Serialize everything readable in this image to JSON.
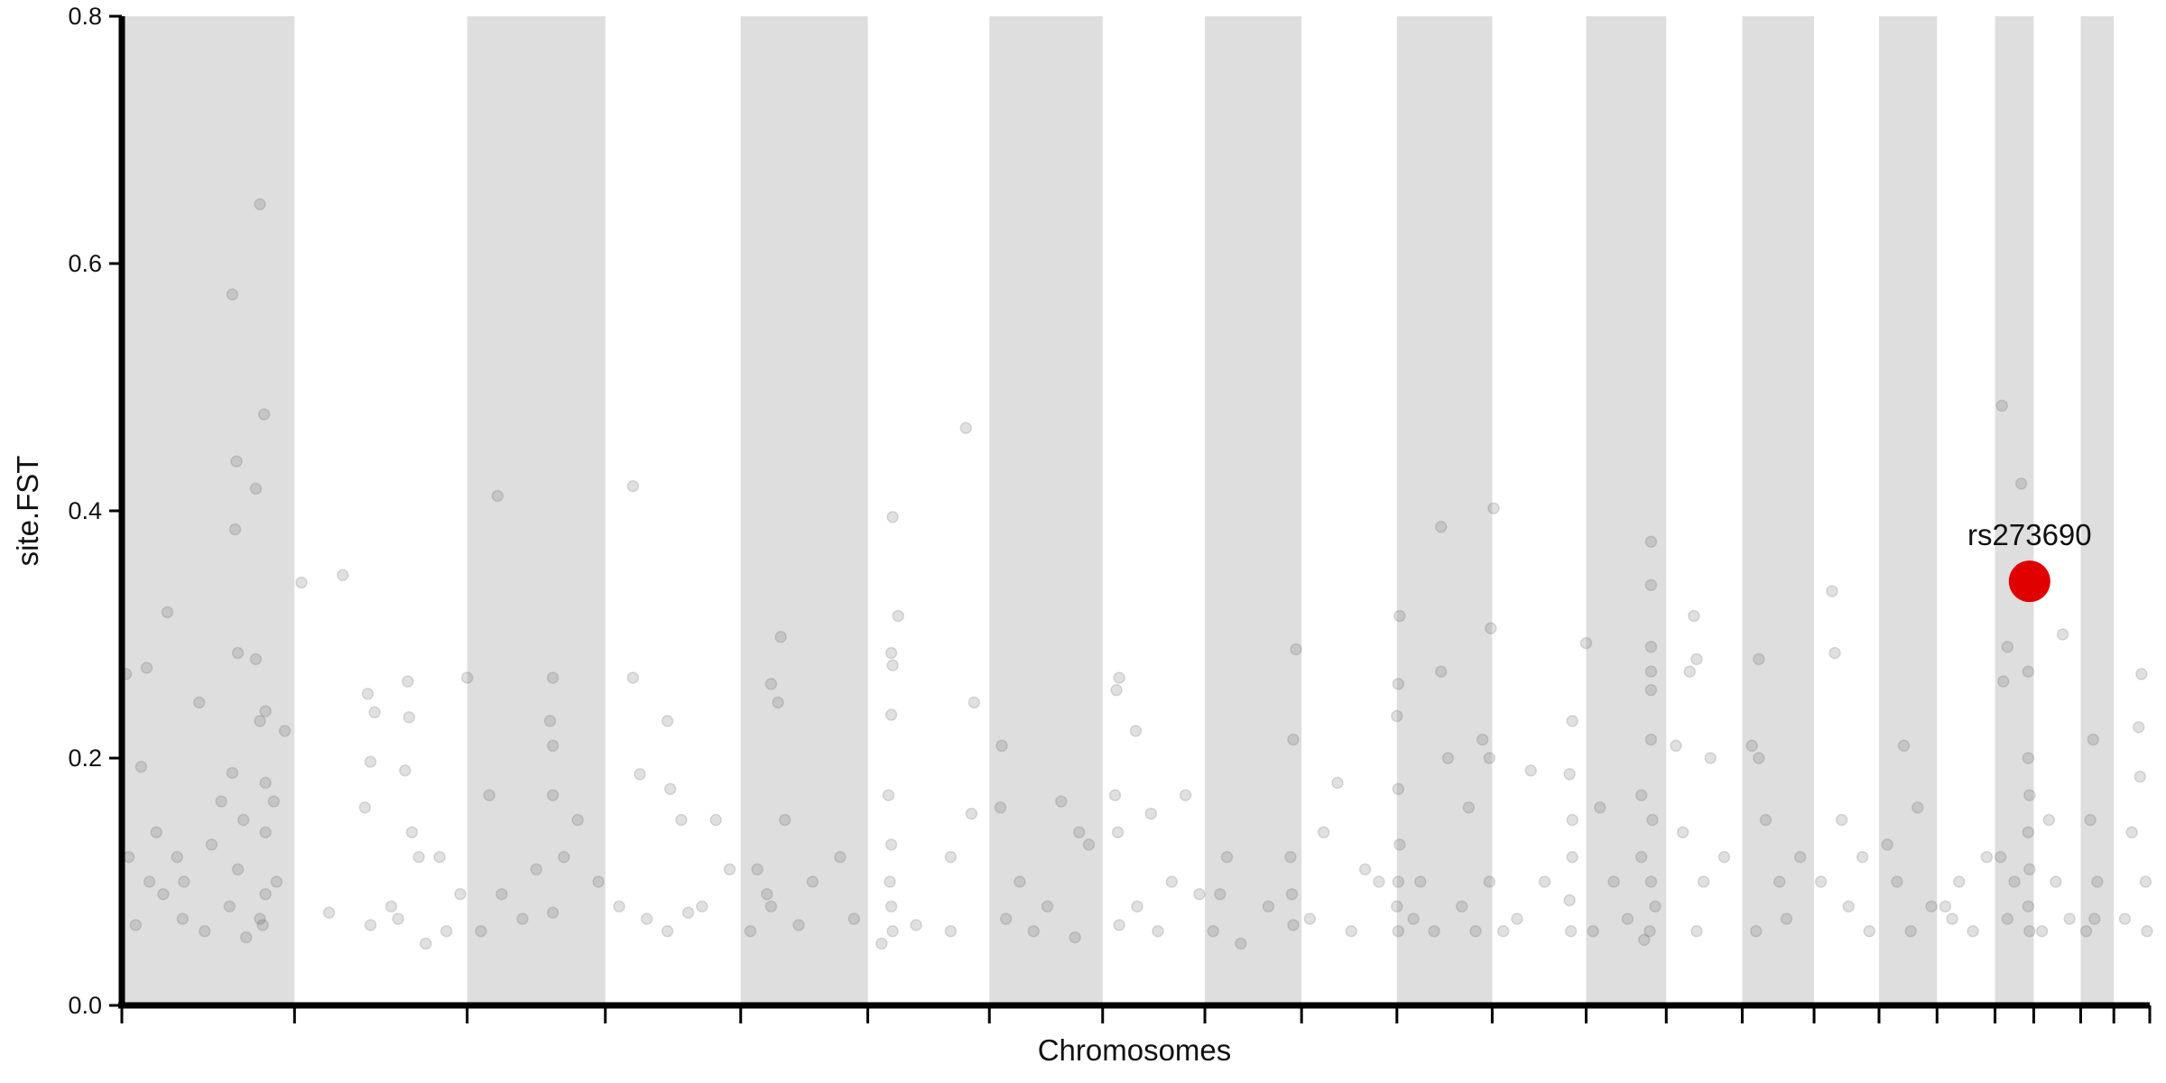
{
  "chart_data": {
    "type": "scatter",
    "x_label": "Chromosomes",
    "y_label": "site.FST",
    "xlim": [
      0,
      1468
    ],
    "ylim": [
      0,
      0.8
    ],
    "yticks": [
      {
        "value": 0,
        "label": "0.0"
      },
      0.2,
      0.4,
      0.6,
      0.8
    ],
    "chromosome_boundaries": [
      0,
      125,
      250,
      350,
      448,
      540,
      628,
      710,
      784,
      854,
      923,
      992,
      1060,
      1118,
      1173,
      1225,
      1272,
      1314,
      1356,
      1384,
      1418,
      1442,
      1468
    ],
    "band_color": "#dedede",
    "color": "#555555",
    "opacity": 0.18,
    "x": [
      80,
      100,
      83,
      97,
      82,
      103,
      84,
      33,
      18,
      3,
      14,
      56,
      97,
      104,
      118,
      100,
      80,
      72,
      104,
      5,
      20,
      30,
      44,
      60,
      84,
      100,
      102,
      90,
      10,
      45,
      65,
      78,
      104,
      112,
      40,
      25,
      104,
      110,
      88,
      130,
      160,
      178,
      180,
      183,
      207,
      208,
      205,
      176,
      210,
      215,
      230,
      195,
      180,
      200,
      245,
      150,
      235,
      220,
      272,
      250,
      312,
      310,
      312,
      312,
      266,
      300,
      290,
      260,
      330,
      345,
      320,
      312,
      275,
      370,
      370,
      375,
      395,
      397,
      360,
      380,
      405,
      420,
      430,
      440,
      395,
      410,
      477,
      470,
      475,
      460,
      480,
      470,
      467,
      500,
      520,
      530,
      455,
      490,
      558,
      562,
      557,
      558,
      557,
      555,
      557,
      556,
      557,
      558,
      550,
      575,
      600,
      615,
      600,
      611,
      617,
      637,
      636,
      650,
      670,
      680,
      700,
      693,
      660,
      640,
      690,
      722,
      720,
      734,
      719,
      721,
      745,
      770,
      760,
      735,
      750,
      780,
      722,
      850,
      848,
      795,
      800,
      810,
      846,
      847,
      848,
      830,
      790,
      925,
      924,
      923,
      924,
      925,
      924,
      923,
      924,
      860,
      880,
      900,
      890,
      870,
      910,
      955,
      993,
      991,
      955,
      985,
      990,
      960,
      975,
      940,
      970,
      980,
      990,
      950,
      935,
      1060,
      1050,
      1048,
      1050,
      1050,
      1048,
      1049,
      1030,
      1010,
      1000,
      1020,
      1070,
      1100,
      1100,
      1080,
      1090,
      1110,
      1065,
      1107,
      1107,
      1107,
      1107,
      1107,
      1107,
      1108,
      1107,
      1106,
      1102,
      1138,
      1140,
      1135,
      1125,
      1150,
      1130,
      1145,
      1140,
      1160,
      1185,
      1185,
      1180,
      1190,
      1200,
      1215,
      1183,
      1205,
      1238,
      1240,
      1245,
      1260,
      1230,
      1250,
      1265,
      1290,
      1300,
      1285,
      1310,
      1295,
      1278,
      1320,
      1330,
      1340,
      1350,
      1325,
      1361,
      1375,
      1362,
      1365,
      1380,
      1380,
      1381,
      1380,
      1381,
      1380,
      1381,
      1370,
      1360,
      1365,
      1405,
      1395,
      1400,
      1410,
      1390,
      1427,
      1425,
      1430,
      1428,
      1422,
      1462,
      1460,
      1461,
      1455,
      1465,
      1450,
      1466
    ],
    "values": [
      0.575,
      0.648,
      0.44,
      0.418,
      0.385,
      0.478,
      0.285,
      0.318,
      0.273,
      0.268,
      0.193,
      0.245,
      0.28,
      0.238,
      0.222,
      0.23,
      0.188,
      0.165,
      0.14,
      0.12,
      0.1,
      0.09,
      0.07,
      0.06,
      0.11,
      0.07,
      0.065,
      0.055,
      0.065,
      0.1,
      0.13,
      0.08,
      0.09,
      0.1,
      0.12,
      0.14,
      0.18,
      0.165,
      0.15,
      0.342,
      0.348,
      0.252,
      0.197,
      0.237,
      0.262,
      0.233,
      0.19,
      0.16,
      0.14,
      0.12,
      0.12,
      0.08,
      0.065,
      0.07,
      0.09,
      0.075,
      0.06,
      0.05,
      0.412,
      0.265,
      0.265,
      0.23,
      0.21,
      0.17,
      0.17,
      0.11,
      0.07,
      0.06,
      0.15,
      0.1,
      0.12,
      0.075,
      0.09,
      0.42,
      0.265,
      0.187,
      0.23,
      0.175,
      0.08,
      0.07,
      0.15,
      0.08,
      0.15,
      0.11,
      0.06,
      0.075,
      0.298,
      0.26,
      0.245,
      0.11,
      0.15,
      0.08,
      0.09,
      0.1,
      0.12,
      0.07,
      0.06,
      0.065,
      0.395,
      0.315,
      0.285,
      0.275,
      0.235,
      0.17,
      0.13,
      0.1,
      0.08,
      0.06,
      0.05,
      0.065,
      0.12,
      0.155,
      0.06,
      0.467,
      0.245,
      0.21,
      0.16,
      0.1,
      0.08,
      0.165,
      0.13,
      0.14,
      0.06,
      0.07,
      0.055,
      0.265,
      0.255,
      0.222,
      0.17,
      0.14,
      0.155,
      0.17,
      0.1,
      0.08,
      0.06,
      0.09,
      0.065,
      0.288,
      0.215,
      0.09,
      0.12,
      0.05,
      0.12,
      0.09,
      0.065,
      0.08,
      0.06,
      0.315,
      0.26,
      0.234,
      0.175,
      0.13,
      0.1,
      0.08,
      0.06,
      0.07,
      0.18,
      0.11,
      0.06,
      0.14,
      0.1,
      0.387,
      0.402,
      0.305,
      0.27,
      0.215,
      0.2,
      0.2,
      0.16,
      0.1,
      0.08,
      0.06,
      0.1,
      0.06,
      0.07,
      0.293,
      0.23,
      0.187,
      0.15,
      0.12,
      0.085,
      0.06,
      0.1,
      0.07,
      0.06,
      0.19,
      0.16,
      0.17,
      0.12,
      0.1,
      0.07,
      0.08,
      0.06,
      0.375,
      0.34,
      0.29,
      0.27,
      0.255,
      0.215,
      0.15,
      0.1,
      0.06,
      0.053,
      0.315,
      0.28,
      0.27,
      0.21,
      0.2,
      0.14,
      0.1,
      0.06,
      0.12,
      0.28,
      0.2,
      0.21,
      0.15,
      0.1,
      0.12,
      0.06,
      0.07,
      0.335,
      0.285,
      0.15,
      0.12,
      0.1,
      0.08,
      0.06,
      0.21,
      0.16,
      0.1,
      0.08,
      0.06,
      0.13,
      0.08,
      0.1,
      0.06,
      0.12,
      0.07,
      0.485,
      0.422,
      0.262,
      0.29,
      0.27,
      0.2,
      0.17,
      0.14,
      0.11,
      0.08,
      0.06,
      0.1,
      0.12,
      0.07,
      0.3,
      0.15,
      0.1,
      0.07,
      0.06,
      0.215,
      0.15,
      0.1,
      0.07,
      0.06,
      0.268,
      0.225,
      0.185,
      0.14,
      0.1,
      0.07,
      0.06
    ],
    "annotations": [
      {
        "label": "rs273690",
        "x": 1381,
        "y": 0.343,
        "color": "#e00000"
      }
    ]
  }
}
